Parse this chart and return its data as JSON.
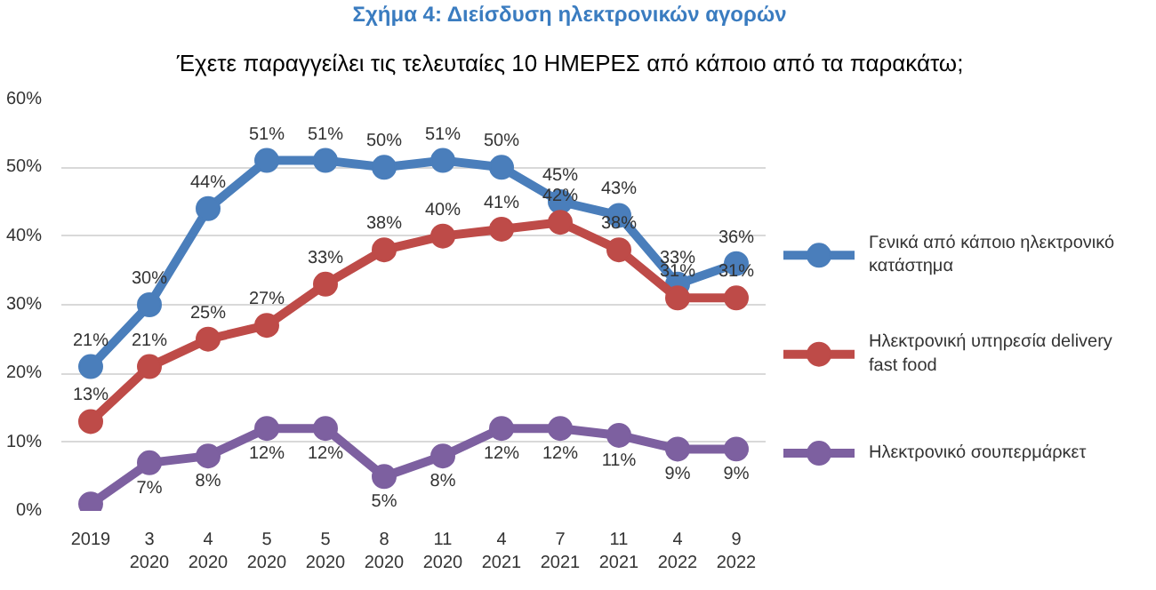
{
  "chart_data": {
    "type": "line",
    "title": "Σχήμα 4: Διείσδυση ηλεκτρονικών αγορών",
    "subtitle": "Έχετε παραγγείλει τις τελευταίες 10 ΗΜΕΡΕΣ από κάποιο από τα παρακάτω;",
    "categories": [
      "2019",
      "3\n2020",
      "4\n2020",
      "5\n2020",
      "5\n2020",
      "8\n2020",
      "11\n2020",
      "4\n2021",
      "7\n2021",
      "11\n2021",
      "4\n2022",
      "9\n2022"
    ],
    "series": [
      {
        "name": "Γενικά από κάποιο ηλεκτρονικό κατάστημα",
        "color": "#4a7ebb",
        "values": [
          21,
          30,
          44,
          51,
          51,
          50,
          51,
          50,
          45,
          43,
          33,
          36
        ],
        "value_labels": [
          "21%",
          "30%",
          "44%",
          "51%",
          "51%",
          "50%",
          "51%",
          "50%",
          "45%",
          "43%",
          "33%",
          "36%"
        ]
      },
      {
        "name": "Ηλεκτρονική υπηρεσία delivery fast food",
        "color": "#be4b48",
        "values": [
          13,
          21,
          25,
          27,
          33,
          38,
          40,
          41,
          42,
          38,
          31,
          31
        ],
        "value_labels": [
          "13%",
          "21%",
          "25%",
          "27%",
          "33%",
          "38%",
          "40%",
          "41%",
          "42%",
          "38%",
          "31%",
          "31%"
        ]
      },
      {
        "name": "Ηλεκτρονικό σουπερμάρκετ",
        "color": "#7d60a0",
        "values": [
          1,
          7,
          8,
          12,
          12,
          5,
          8,
          12,
          12,
          11,
          9,
          9
        ],
        "value_labels": [
          null,
          "7%",
          "8%",
          "12%",
          "12%",
          "5%",
          "8%",
          "12%",
          "12%",
          "11%",
          "9%",
          "9%"
        ]
      }
    ],
    "ylim": [
      0,
      60
    ],
    "yticks": [
      {
        "value": 0,
        "label": "0%"
      },
      {
        "value": 10,
        "label": "10%"
      },
      {
        "value": 20,
        "label": "20%"
      },
      {
        "value": 30,
        "label": "30%"
      },
      {
        "value": 40,
        "label": "40%"
      },
      {
        "value": 50,
        "label": "50%"
      },
      {
        "value": 60,
        "label": "60%"
      }
    ],
    "grid": "y",
    "legend": "right",
    "marker": "circle",
    "line_style": "solid"
  }
}
